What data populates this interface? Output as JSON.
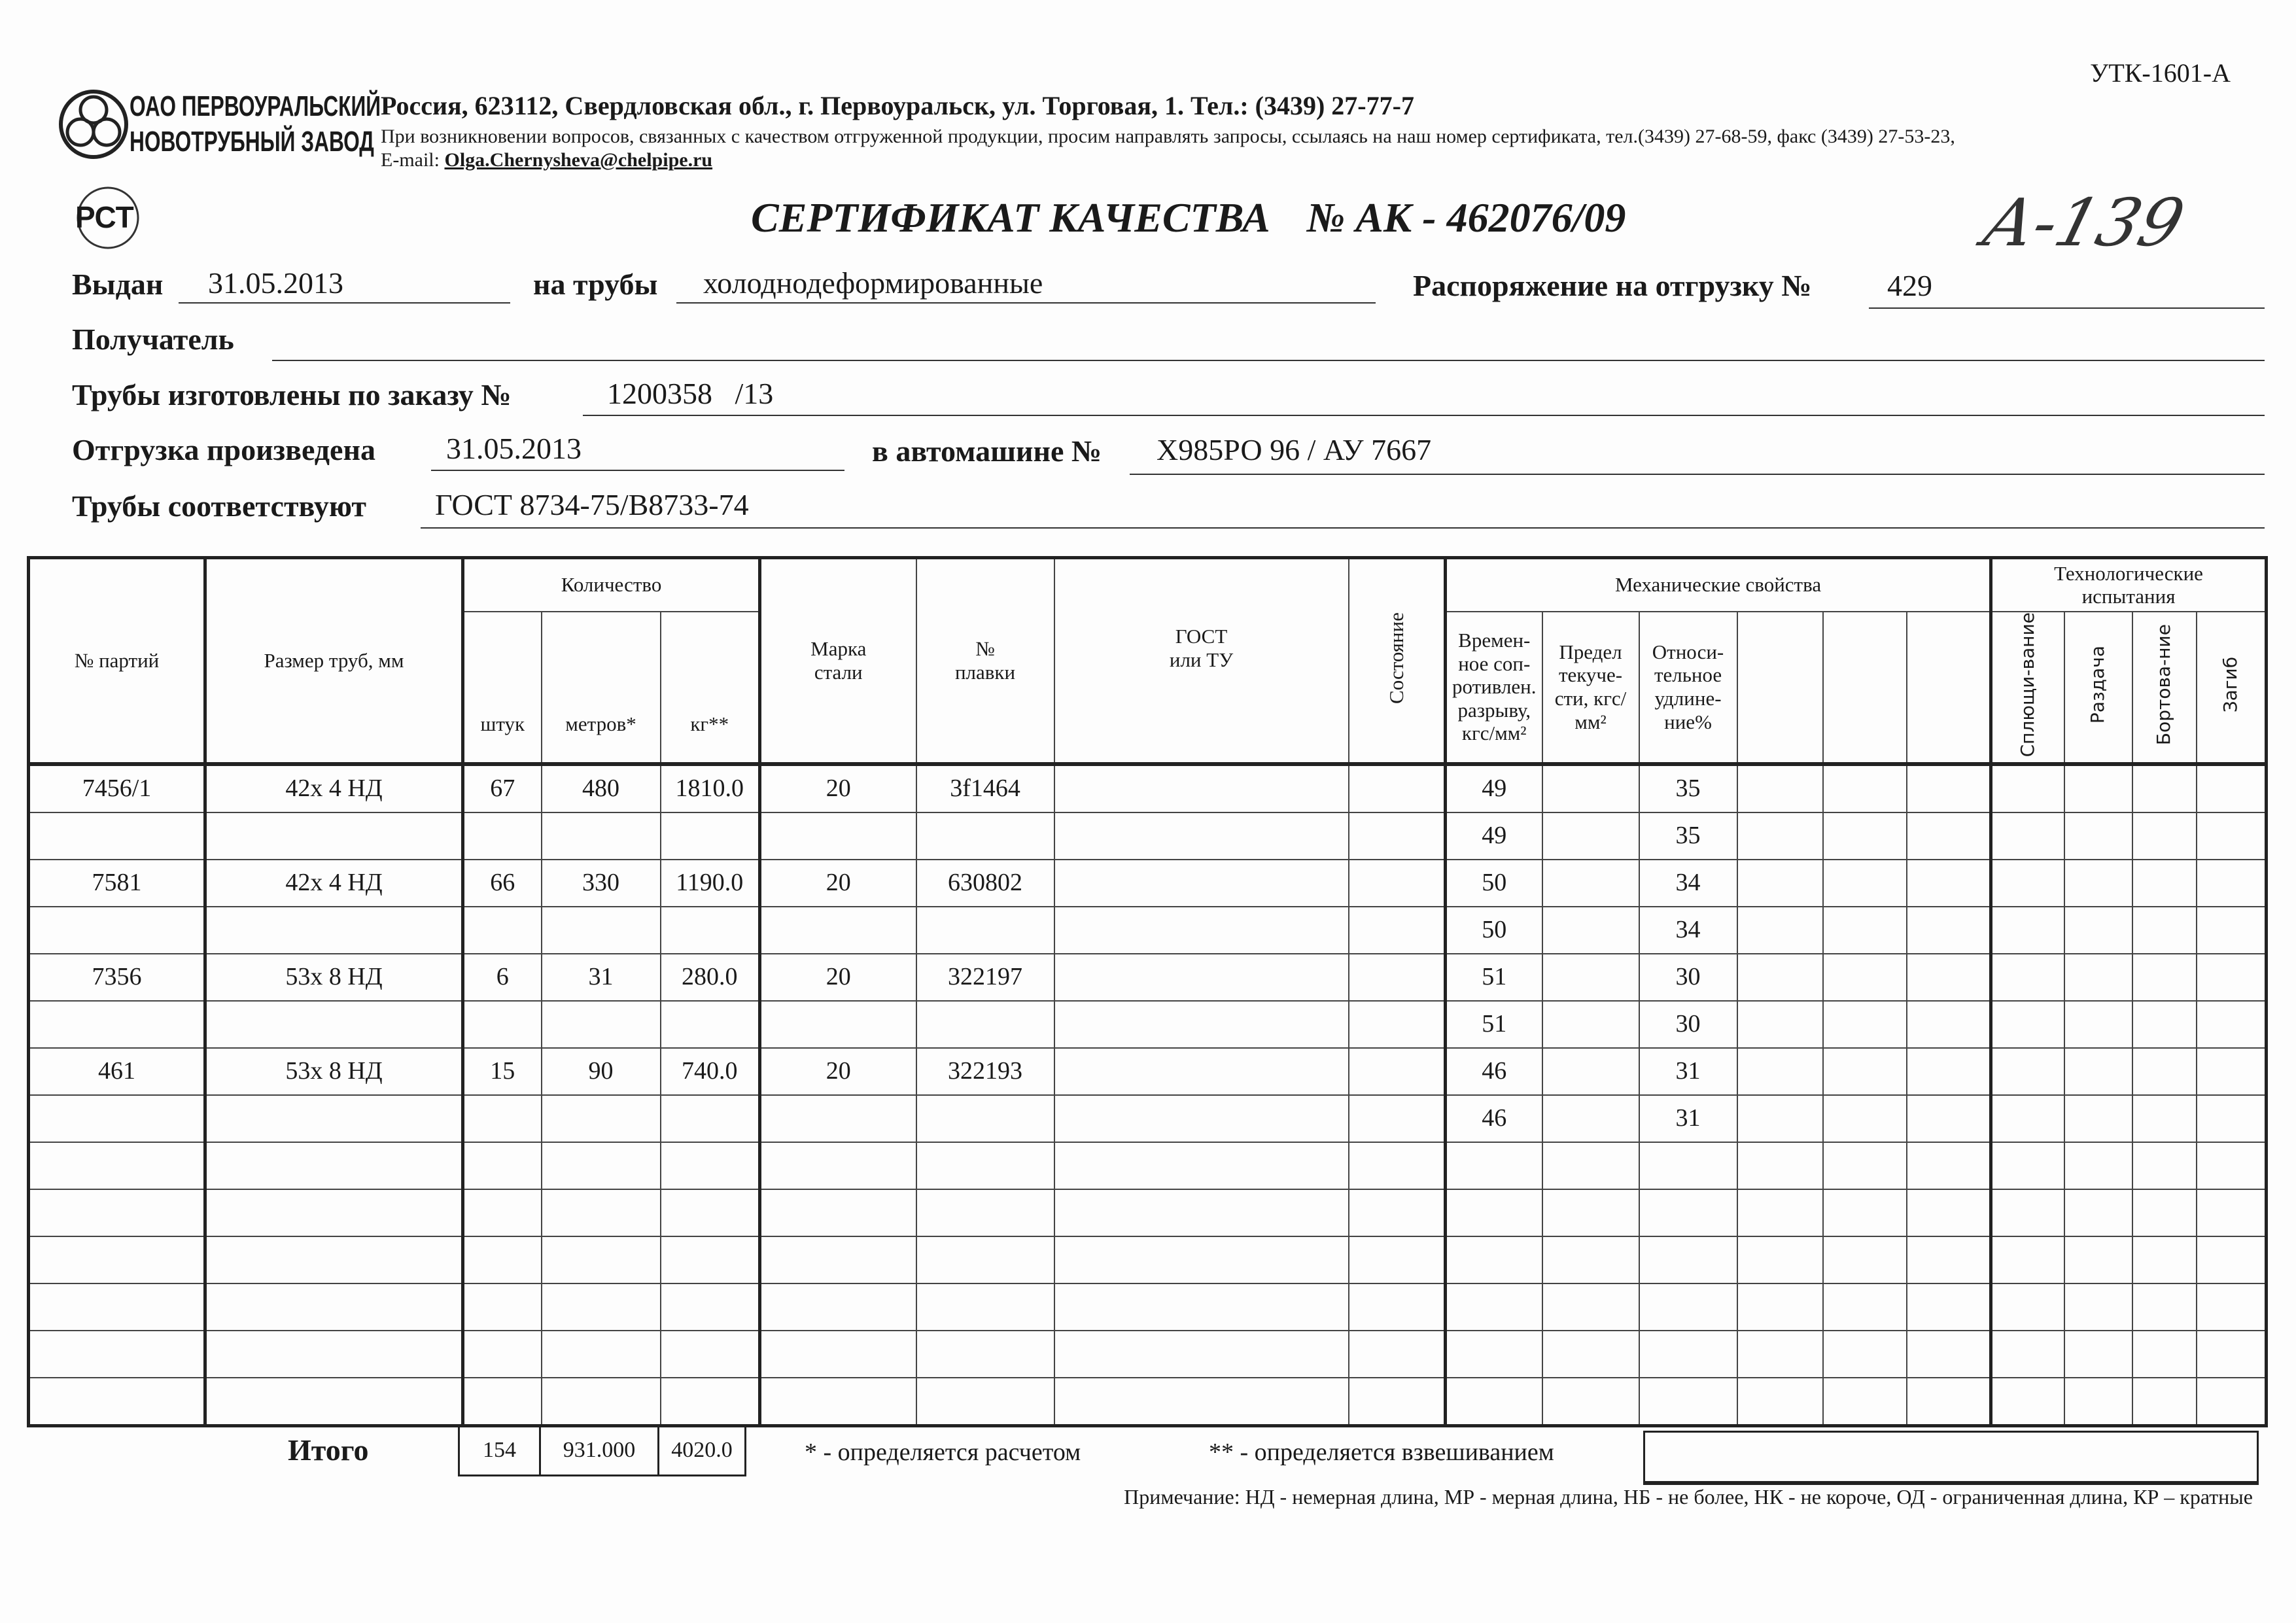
{
  "form_code": "УТК-1601-А",
  "company": {
    "name_line1": "ОАО ПЕРВОУРАЛЬСКИЙ",
    "name_line2": "НОВОТРУБНЫЙ ЗАВОД",
    "address": "Россия, 623112, Свердловская обл., г. Первоуральск, ул. Торговая, 1. Тел.: (3439) 27-77-7",
    "contact_note": "При возникновении вопросов, связанных с качеством отгруженной продукции, просим направлять запросы, ссылаясь на наш номер сертификата, тел.(3439) 27-68-59, факс (3439) 27-53-23,",
    "email_label": "E-mail:",
    "email": "Olga.Chernysheva@chelpipe.ru",
    "rst_mark": "РСТ"
  },
  "certificate": {
    "title": "СЕРТИФИКАТ КАЧЕСТВА",
    "number_label": "№  АК -",
    "number": "462076/09",
    "handwritten_note": "А-139"
  },
  "fields": {
    "issued_label": "Выдан",
    "issued": "31.05.2013",
    "pipes_label": "на трубы",
    "pipes": "холоднодеформированные",
    "order_label": "Распоряжение на отгрузку №",
    "order": "429",
    "recipient_label": "Получатель",
    "recipient": "",
    "made_by_order_label": "Трубы изготовлены по заказу №",
    "made_by_order": "1200358   /13",
    "shipped_label": "Отгрузка произведена",
    "shipped": "31.05.2013",
    "vehicle_label": "в автомашине №",
    "vehicle": "Х985РО 96 / АУ 7667",
    "standard_label": "Трубы соответствуют",
    "standard": "ГОСТ 8734-75/В8733-74"
  },
  "table": {
    "headers": {
      "batch": "№ партий",
      "size": "Размер труб, мм",
      "quantity": "Количество",
      "pieces": "штук",
      "meters": "метров*",
      "kg": "кг**",
      "steel": "Марка стали",
      "heat": "№ плавки",
      "gost": "ГОСТ или ТУ",
      "condition": "Состояние",
      "mechanical": "Механические свойства",
      "tensile": "Времен-ное соп-ротивлен. разрыву, кгс/мм²",
      "yield": "Предел текуче-сти, кгс/мм²",
      "elongation": "Относи-тельное удлине-ние%",
      "tech": "Технологические испытания",
      "flattening": "Сплющи-вание",
      "expansion": "Раздача",
      "flanging": "Бортова-ние",
      "bend": "Загиб"
    },
    "rows": [
      {
        "batch": "7456/1",
        "size": "42х 4 НД",
        "pieces": "67",
        "meters": "480",
        "kg": "1810.0",
        "steel": "20",
        "heat": "3f1464",
        "tensile": "49",
        "elongation": "35"
      },
      {
        "tensile": "49",
        "elongation": "35"
      },
      {
        "batch": "7581",
        "size": "42х 4 НД",
        "pieces": "66",
        "meters": "330",
        "kg": "1190.0",
        "steel": "20",
        "heat": "630802",
        "tensile": "50",
        "elongation": "34"
      },
      {
        "tensile": "50",
        "elongation": "34"
      },
      {
        "batch": "7356",
        "size": "53х 8 НД",
        "pieces": "6",
        "meters": "31",
        "kg": "280.0",
        "steel": "20",
        "heat": "322197",
        "tensile": "51",
        "elongation": "30"
      },
      {
        "tensile": "51",
        "elongation": "30"
      },
      {
        "batch": "461",
        "size": "53х 8 НД",
        "pieces": "15",
        "meters": "90",
        "kg": "740.0",
        "steel": "20",
        "heat": "322193",
        "tensile": "46",
        "elongation": "31"
      },
      {
        "tensile": "46",
        "elongation": "31"
      },
      {},
      {},
      {},
      {},
      {},
      {}
    ]
  },
  "totals": {
    "label": "Итого",
    "pieces": "154",
    "meters": "931.000",
    "kg": "4020.0"
  },
  "footnotes": {
    "calc": "* - определяется расчетом",
    "weigh": "** - определяется взвешиванием",
    "note": "Примечание: НД - немерная длина, МР - мерная длина, НБ - не более, НК - не короче, ОД - ограниченная длина, КР – кратные"
  }
}
